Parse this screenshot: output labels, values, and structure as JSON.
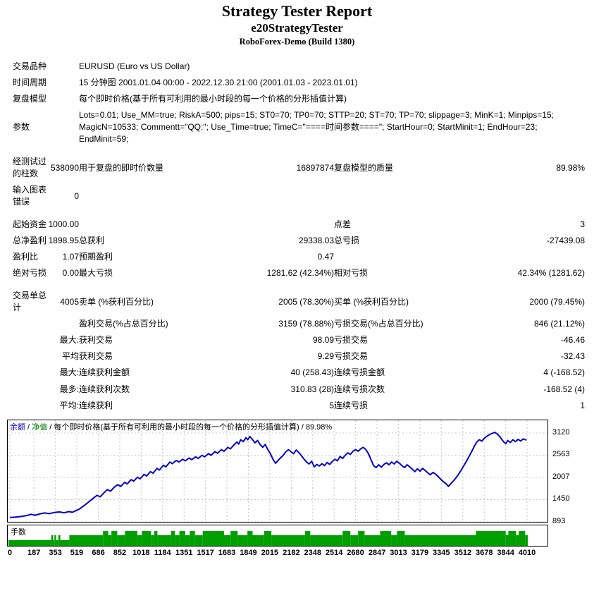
{
  "header": {
    "title": "Strategy Tester Report",
    "expert": "e20StrategyTester",
    "server": "RoboForex-Demo (Build 1380)"
  },
  "table": {
    "rows": [
      {
        "c1": "交易品种",
        "span": true,
        "c3": "EURUSD (Euro vs US Dollar)"
      },
      {
        "c1": "时间周期",
        "span": true,
        "c3": "15 分钟图 2001.01.04 00:00 - 2022.12.30 21:00 (2001.01.03 - 2023.01.01)"
      },
      {
        "c1": "复盘模型",
        "span": true,
        "c3": "每个即时价格(基于所有可利用的最小时段的每一个价格的分形插值计算)"
      },
      {
        "c1": "参数",
        "span": true,
        "param": true,
        "c3": "Lots=0.01; Use_MM=true; RiskA=500; pips=15; ST0=70; TP0=70; STTP=20; ST=70; TP=70; slippage=3; MinK=1; Minpips=15; MagicN=10533; Commentt=\"QQ:\"; Use_Time=true; TimeC=\"====时间参数====\"; StartHour=0; StartMinit=1; EndHour=23; EndMinit=59;"
      },
      {
        "gap": true,
        "c1": "经测试过的柱数",
        "c2": "538090",
        "c3": "用于复盘的即时价数量",
        "c4": "16897874",
        "c5": "复盘模型的质量",
        "c6": "89.98%"
      },
      {
        "c1": "输入图表错误",
        "c2": "0",
        "c3": "",
        "c4": "",
        "c5": "",
        "c6": ""
      },
      {
        "gap": true,
        "c1": "起始资金",
        "c2": "1000.00",
        "c3": "",
        "c4": "",
        "c5": "点差",
        "c6": "3"
      },
      {
        "c1": "总净盈利",
        "c2": "1898.95",
        "c3": "总获利",
        "c4": "29338.03",
        "c5": "总亏损",
        "c6": "-27439.08"
      },
      {
        "c1": "盈利比",
        "c2": "1.07",
        "c3": "预期盈利",
        "c4": "0.47",
        "c5": "",
        "c6": ""
      },
      {
        "c1": "绝对亏损",
        "c2": "0.00",
        "c3": "最大亏损",
        "c4": "1281.62 (42.34%)",
        "c5": "相对亏损",
        "c6": "42.34% (1281.62)"
      },
      {
        "gap": true,
        "c1": "交易单总计",
        "c2": "4005",
        "c3": "卖单 (%获利百分比)",
        "c4": "2005 (78.30%)",
        "c5": "买单 (%获利百分比)",
        "c6": "2000 (79.45%)"
      },
      {
        "c1": "",
        "c2": "",
        "c3": "盈利交易(%占总百分比)",
        "c4": "3159 (78.88%)",
        "c5": "亏损交易(%占总百分比)",
        "c6": "846 (21.12%)"
      },
      {
        "c1": "",
        "c2": "最大:",
        "c3": "获利交易",
        "c4": "98.09",
        "c5": "亏损交易",
        "c6": "-46.46"
      },
      {
        "c1": "",
        "c2": "平均",
        "c3": "获利交易",
        "c4": "9.29",
        "c5": "亏损交易",
        "c6": "-32.43"
      },
      {
        "c1": "",
        "c2": "最大:",
        "c3": "连续获利金额",
        "c4": "40 (258.43)",
        "c5": "连续亏损金额",
        "c6": "4 (-168.52)"
      },
      {
        "c1": "",
        "c2": "最多:",
        "c3": "连续获利次数",
        "c4": "310.83 (28)",
        "c5": "连续亏损次数",
        "c6": "-168.52 (4)"
      },
      {
        "c1": "",
        "c2": "平均:",
        "c3": "连续获利",
        "c4": "5",
        "c5": "连续亏损",
        "c6": "1"
      }
    ]
  },
  "chart_data": [
    {
      "type": "line",
      "name": "balance-curve",
      "legend": [
        {
          "text": "余额",
          "color": "#0000c8"
        },
        {
          "text": "净值",
          "color": "#008000"
        },
        {
          "text": "每个即时价格(基于所有可利用的最小时段的每一个价格的分形插值计算)",
          "color": "#000000"
        },
        {
          "text": "89.98%",
          "color": "#000000"
        }
      ],
      "line_color": "#0000c8",
      "grid": true,
      "grid_color": "#c8c8c8",
      "xlim": [
        0,
        4010
      ],
      "ylim": [
        893,
        3438
      ],
      "y_ticks": [
        3120,
        2563,
        2007,
        1450,
        893
      ],
      "x_ticks": [
        0,
        187,
        353,
        519,
        686,
        852,
        1018,
        1184,
        1351,
        1517,
        1683,
        1849,
        2015,
        2182,
        2348,
        2514,
        2680,
        2847,
        3013,
        3179,
        3345,
        3512,
        3678,
        3844,
        4010
      ],
      "points": [
        [
          0,
          1000
        ],
        [
          45,
          1014
        ],
        [
          90,
          1028
        ],
        [
          130,
          1050
        ],
        [
          165,
          1082
        ],
        [
          195,
          1060
        ],
        [
          235,
          1094
        ],
        [
          270,
          1116
        ],
        [
          305,
          1098
        ],
        [
          345,
          1126
        ],
        [
          385,
          1142
        ],
        [
          420,
          1120
        ],
        [
          455,
          1150
        ],
        [
          485,
          1134
        ],
        [
          510,
          1170
        ],
        [
          540,
          1215
        ],
        [
          575,
          1298
        ],
        [
          615,
          1402
        ],
        [
          645,
          1480
        ],
        [
          675,
          1558
        ],
        [
          700,
          1520
        ],
        [
          730,
          1622
        ],
        [
          755,
          1700
        ],
        [
          780,
          1662
        ],
        [
          810,
          1762
        ],
        [
          835,
          1822
        ],
        [
          860,
          1782
        ],
        [
          890,
          1884
        ],
        [
          910,
          1844
        ],
        [
          940,
          1952
        ],
        [
          960,
          1912
        ],
        [
          990,
          2012
        ],
        [
          1010,
          1972
        ],
        [
          1040,
          2082
        ],
        [
          1060,
          2042
        ],
        [
          1090,
          2152
        ],
        [
          1110,
          2112
        ],
        [
          1140,
          2232
        ],
        [
          1160,
          2192
        ],
        [
          1190,
          2312
        ],
        [
          1210,
          2272
        ],
        [
          1240,
          2392
        ],
        [
          1260,
          2352
        ],
        [
          1290,
          2432
        ],
        [
          1310,
          2392
        ],
        [
          1340,
          2462
        ],
        [
          1360,
          2422
        ],
        [
          1390,
          2492
        ],
        [
          1410,
          2452
        ],
        [
          1440,
          2522
        ],
        [
          1460,
          2482
        ],
        [
          1490,
          2562
        ],
        [
          1510,
          2522
        ],
        [
          1540,
          2602
        ],
        [
          1560,
          2562
        ],
        [
          1590,
          2652
        ],
        [
          1610,
          2612
        ],
        [
          1640,
          2702
        ],
        [
          1660,
          2662
        ],
        [
          1690,
          2762
        ],
        [
          1710,
          2722
        ],
        [
          1740,
          2832
        ],
        [
          1760,
          2892
        ],
        [
          1775,
          2842
        ],
        [
          1790,
          2952
        ],
        [
          1810,
          2902
        ],
        [
          1830,
          3002
        ],
        [
          1845,
          2952
        ],
        [
          1860,
          3032
        ],
        [
          1880,
          2962
        ],
        [
          1900,
          2872
        ],
        [
          1920,
          2932
        ],
        [
          1940,
          2832
        ],
        [
          1960,
          2762
        ],
        [
          1980,
          2832
        ],
        [
          2000,
          2702
        ],
        [
          2020,
          2602
        ],
        [
          2040,
          2462
        ],
        [
          2060,
          2362
        ],
        [
          2080,
          2432
        ],
        [
          2100,
          2502
        ],
        [
          2120,
          2562
        ],
        [
          2140,
          2652
        ],
        [
          2160,
          2702
        ],
        [
          2180,
          2652
        ],
        [
          2200,
          2602
        ],
        [
          2220,
          2692
        ],
        [
          2240,
          2632
        ],
        [
          2260,
          2552
        ],
        [
          2280,
          2472
        ],
        [
          2300,
          2392
        ],
        [
          2320,
          2342
        ],
        [
          2340,
          2412
        ],
        [
          2360,
          2272
        ],
        [
          2380,
          2332
        ],
        [
          2400,
          2292
        ],
        [
          2420,
          2352
        ],
        [
          2440,
          2302
        ],
        [
          2460,
          2382
        ],
        [
          2480,
          2332
        ],
        [
          2500,
          2402
        ],
        [
          2520,
          2462
        ],
        [
          2540,
          2422
        ],
        [
          2560,
          2532
        ],
        [
          2580,
          2482
        ],
        [
          2600,
          2562
        ],
        [
          2620,
          2622
        ],
        [
          2640,
          2582
        ],
        [
          2660,
          2662
        ],
        [
          2680,
          2702
        ],
        [
          2700,
          2662
        ],
        [
          2720,
          2722
        ],
        [
          2740,
          2762
        ],
        [
          2760,
          2702
        ],
        [
          2780,
          2602
        ],
        [
          2800,
          2452
        ],
        [
          2820,
          2302
        ],
        [
          2840,
          2252
        ],
        [
          2860,
          2322
        ],
        [
          2880,
          2262
        ],
        [
          2900,
          2332
        ],
        [
          2920,
          2372
        ],
        [
          2940,
          2322
        ],
        [
          2960,
          2392
        ],
        [
          2980,
          2342
        ],
        [
          3000,
          2412
        ],
        [
          3020,
          2362
        ],
        [
          3040,
          2302
        ],
        [
          3060,
          2252
        ],
        [
          3080,
          2322
        ],
        [
          3100,
          2272
        ],
        [
          3120,
          2212
        ],
        [
          3140,
          2152
        ],
        [
          3160,
          2222
        ],
        [
          3180,
          2162
        ],
        [
          3200,
          2232
        ],
        [
          3220,
          2182
        ],
        [
          3240,
          2122
        ],
        [
          3260,
          2072
        ],
        [
          3280,
          2132
        ],
        [
          3300,
          2092
        ],
        [
          3320,
          2032
        ],
        [
          3340,
          1962
        ],
        [
          3360,
          1902
        ],
        [
          3380,
          1852
        ],
        [
          3400,
          1782
        ],
        [
          3420,
          1852
        ],
        [
          3440,
          1922
        ],
        [
          3460,
          2002
        ],
        [
          3480,
          2092
        ],
        [
          3500,
          2192
        ],
        [
          3520,
          2302
        ],
        [
          3540,
          2412
        ],
        [
          3560,
          2532
        ],
        [
          3580,
          2652
        ],
        [
          3600,
          2782
        ],
        [
          3620,
          2892
        ],
        [
          3640,
          2952
        ],
        [
          3660,
          2916
        ],
        [
          3680,
          2992
        ],
        [
          3700,
          3042
        ],
        [
          3720,
          3082
        ],
        [
          3740,
          3112
        ],
        [
          3760,
          3136
        ],
        [
          3780,
          3092
        ],
        [
          3800,
          3022
        ],
        [
          3815,
          2952
        ],
        [
          3830,
          2892
        ],
        [
          3845,
          2852
        ],
        [
          3860,
          2932
        ],
        [
          3880,
          2882
        ],
        [
          3900,
          2952
        ],
        [
          3920,
          2902
        ],
        [
          3940,
          2962
        ],
        [
          3960,
          2916
        ],
        [
          3980,
          2972
        ],
        [
          4005,
          2942
        ]
      ]
    },
    {
      "type": "bar",
      "name": "lots-per-trade",
      "label": "手数",
      "bar_color": "#009f00",
      "xlim": [
        0,
        4010
      ],
      "levels": [
        1,
        2,
        3
      ],
      "segments": [
        [
          0,
          330,
          1
        ],
        [
          330,
          345,
          2
        ],
        [
          345,
          355,
          1
        ],
        [
          355,
          368,
          2
        ],
        [
          368,
          385,
          1
        ],
        [
          385,
          400,
          2
        ],
        [
          400,
          470,
          1
        ],
        [
          470,
          730,
          2
        ],
        [
          730,
          770,
          3
        ],
        [
          770,
          795,
          2
        ],
        [
          795,
          840,
          3
        ],
        [
          840,
          900,
          2
        ],
        [
          900,
          995,
          3
        ],
        [
          995,
          1030,
          2
        ],
        [
          1030,
          1100,
          3
        ],
        [
          1100,
          1125,
          2
        ],
        [
          1125,
          1150,
          3
        ],
        [
          1150,
          1255,
          2
        ],
        [
          1255,
          1285,
          3
        ],
        [
          1285,
          1320,
          2
        ],
        [
          1320,
          1365,
          3
        ],
        [
          1365,
          1400,
          2
        ],
        [
          1400,
          1440,
          3
        ],
        [
          1440,
          1500,
          2
        ],
        [
          1500,
          1665,
          3
        ],
        [
          1665,
          1715,
          2
        ],
        [
          1715,
          1770,
          3
        ],
        [
          1770,
          1845,
          2
        ],
        [
          1845,
          1885,
          3
        ],
        [
          1885,
          1975,
          2
        ],
        [
          1975,
          2030,
          3
        ],
        [
          2030,
          2290,
          2
        ],
        [
          2290,
          2330,
          3
        ],
        [
          2330,
          2580,
          2
        ],
        [
          2580,
          2640,
          3
        ],
        [
          2640,
          2700,
          2
        ],
        [
          2700,
          2750,
          3
        ],
        [
          2750,
          2870,
          2
        ],
        [
          2870,
          2955,
          3
        ],
        [
          2955,
          3000,
          2
        ],
        [
          3000,
          3060,
          3
        ],
        [
          3060,
          3610,
          2
        ],
        [
          3610,
          3840,
          3
        ],
        [
          3840,
          3860,
          2
        ],
        [
          3860,
          3920,
          3
        ],
        [
          3920,
          3940,
          2
        ],
        [
          3940,
          3990,
          3
        ],
        [
          3990,
          4010,
          2
        ]
      ]
    }
  ]
}
